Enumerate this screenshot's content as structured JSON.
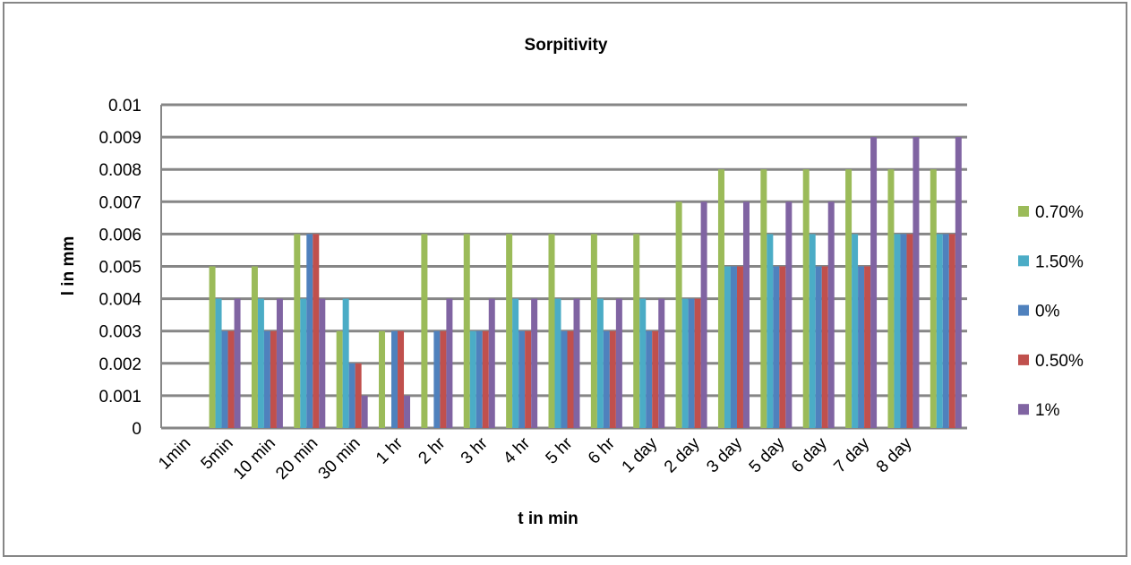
{
  "chart_data": {
    "type": "bar",
    "title": "Sorpitivity",
    "x_label": "t in min",
    "y_label": "l in mm",
    "categories": [
      "1min",
      "5min",
      "10 min",
      "20 min",
      "30 min",
      "1 hr",
      "2 hr",
      "3 hr",
      "4 hr",
      "5 hr",
      "6 hr",
      "1 day",
      "2 day",
      "3 day",
      "5 day",
      "6 day",
      "7 day",
      "8 day",
      null
    ],
    "series": [
      {
        "name": "0.70%",
        "color": "#9bbb59",
        "values": [
          0,
          0.005,
          0.005,
          0.006,
          0.003,
          0.003,
          0.006,
          0.006,
          0.006,
          0.006,
          0.006,
          0.006,
          0.007,
          0.008,
          0.008,
          0.008,
          0.008,
          0.008,
          0.008
        ]
      },
      {
        "name": "1.50%",
        "color": "#4bacc6",
        "values": [
          0,
          0.004,
          0.004,
          0.004,
          0.004,
          0,
          0,
          0.003,
          0.004,
          0.004,
          0.004,
          0.004,
          0.004,
          0.005,
          0.006,
          0.006,
          0.006,
          0.006,
          0.006
        ]
      },
      {
        "name": "0%",
        "color": "#4f81bd",
        "values": [
          0,
          0.003,
          0.003,
          0.006,
          0.002,
          0.003,
          0.003,
          0.003,
          0.003,
          0.003,
          0.003,
          0.003,
          0.004,
          0.005,
          0.005,
          0.005,
          0.005,
          0.006,
          0.006
        ]
      },
      {
        "name": "0.50%",
        "color": "#c0504d",
        "values": [
          0,
          0.003,
          0.003,
          0.006,
          0.002,
          0.003,
          0.003,
          0.003,
          0.003,
          0.003,
          0.003,
          0.003,
          0.004,
          0.005,
          0.005,
          0.005,
          0.005,
          0.006,
          0.006
        ]
      },
      {
        "name": "1%",
        "color": "#8064a2",
        "values": [
          0,
          0.004,
          0.004,
          0.004,
          0.001,
          0.001,
          0.004,
          0.004,
          0.004,
          0.004,
          0.004,
          0.004,
          0.007,
          0.007,
          0.007,
          0.007,
          0.009,
          0.009,
          0.009
        ]
      }
    ],
    "ylim": [
      0,
      0.01
    ],
    "yticks": [
      0,
      0.001,
      0.002,
      0.003,
      0.004,
      0.005,
      0.006,
      0.007,
      0.008,
      0.009,
      0.01
    ],
    "grid": true,
    "legend": "right"
  }
}
